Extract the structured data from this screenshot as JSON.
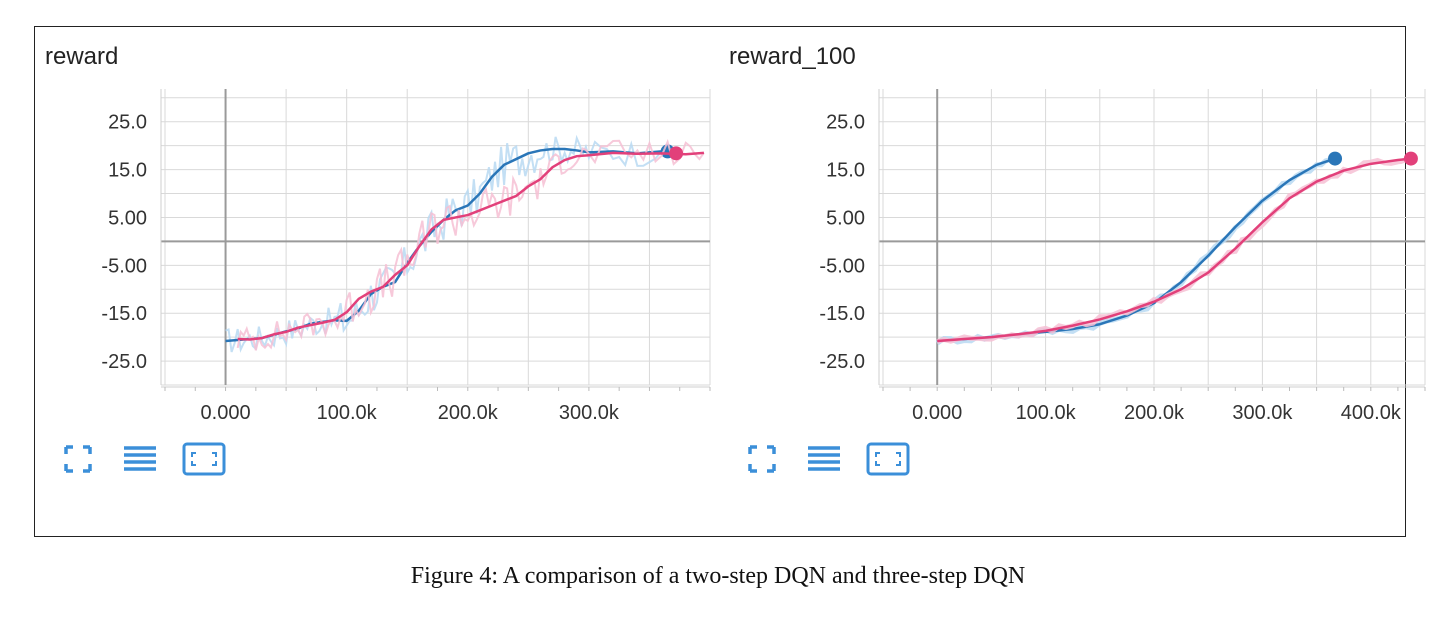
{
  "colors": {
    "blue": "#2a76b8",
    "blue_light": "#b9d9f2",
    "pink": "#e2407a",
    "pink_light": "#f6bfd4",
    "grid": "#d9d9d9",
    "axis": "#9a9a9a",
    "icon": "#3b8fd9"
  },
  "toolbar": {
    "icons": [
      "expand-icon",
      "list-icon",
      "fit-domain-icon"
    ]
  },
  "caption": "Figure 4: A comparison of a two-step DQN and three-step DQN",
  "chart_data": [
    {
      "type": "line",
      "title": "reward",
      "xlabel": "",
      "ylabel": "",
      "xlim": [
        -50000,
        400000
      ],
      "ylim": [
        -30,
        31
      ],
      "x_ticks": [
        0,
        100000,
        200000,
        300000
      ],
      "x_tick_labels": [
        "0.000",
        "100.0k",
        "200.0k",
        "300.0k"
      ],
      "y_ticks": [
        25,
        15,
        5,
        -5,
        -15,
        -25
      ],
      "y_tick_labels": [
        "25.0",
        "15.0",
        "5.00",
        "-5.00",
        "-15.0",
        "-25.0"
      ],
      "grid": true,
      "series": [
        {
          "color_key": "blue",
          "smoothed": [
            [
              0,
              -20.8
            ],
            [
              10000,
              -20.6
            ],
            [
              20000,
              -20.4
            ],
            [
              30000,
              -20.2
            ],
            [
              40000,
              -19.5
            ],
            [
              50000,
              -18.8
            ],
            [
              60000,
              -18.2
            ],
            [
              70000,
              -17.2
            ],
            [
              80000,
              -16.8
            ],
            [
              90000,
              -16.5
            ],
            [
              100000,
              -16.6
            ],
            [
              110000,
              -14.5
            ],
            [
              120000,
              -11.0
            ],
            [
              130000,
              -9.5
            ],
            [
              140000,
              -8.5
            ],
            [
              150000,
              -4.5
            ],
            [
              160000,
              -1.0
            ],
            [
              170000,
              2.0
            ],
            [
              180000,
              4.5
            ],
            [
              190000,
              6.5
            ],
            [
              200000,
              7.5
            ],
            [
              210000,
              10.0
            ],
            [
              220000,
              13.5
            ],
            [
              230000,
              16.0
            ],
            [
              240000,
              17.2
            ],
            [
              250000,
              18.4
            ],
            [
              260000,
              19.0
            ],
            [
              270000,
              19.3
            ],
            [
              280000,
              19.3
            ],
            [
              290000,
              19.0
            ],
            [
              300000,
              18.6
            ],
            [
              320000,
              18.8
            ],
            [
              340000,
              18.4
            ],
            [
              360000,
              18.8
            ]
          ],
          "end_marker": [
            365000,
            18.8
          ]
        },
        {
          "color_key": "pink",
          "smoothed": [
            [
              10000,
              -20.4
            ],
            [
              20000,
              -20.5
            ],
            [
              30000,
              -20.2
            ],
            [
              40000,
              -19.4
            ],
            [
              50000,
              -18.9
            ],
            [
              60000,
              -18.0
            ],
            [
              70000,
              -17.5
            ],
            [
              80000,
              -17.0
            ],
            [
              90000,
              -16.4
            ],
            [
              100000,
              -14.8
            ],
            [
              110000,
              -12.0
            ],
            [
              120000,
              -10.5
            ],
            [
              130000,
              -9.5
            ],
            [
              140000,
              -7.0
            ],
            [
              150000,
              -5.0
            ],
            [
              160000,
              -1.0
            ],
            [
              170000,
              2.5
            ],
            [
              180000,
              4.5
            ],
            [
              190000,
              5.0
            ],
            [
              200000,
              5.5
            ],
            [
              210000,
              6.5
            ],
            [
              220000,
              7.5
            ],
            [
              230000,
              8.5
            ],
            [
              240000,
              9.5
            ],
            [
              250000,
              11.5
            ],
            [
              260000,
              13.0
            ],
            [
              270000,
              15.5
            ],
            [
              280000,
              17.0
            ],
            [
              290000,
              17.8
            ],
            [
              300000,
              18.0
            ],
            [
              320000,
              18.5
            ],
            [
              340000,
              18.3
            ],
            [
              360000,
              18.4
            ],
            [
              380000,
              18.2
            ],
            [
              395000,
              18.5
            ]
          ],
          "end_marker": [
            372000,
            18.4
          ]
        }
      ]
    },
    {
      "type": "line",
      "title": "reward_100",
      "xlabel": "",
      "ylabel": "",
      "xlim": [
        -50000,
        450000
      ],
      "ylim": [
        -30,
        31
      ],
      "x_ticks": [
        0,
        100000,
        200000,
        300000,
        400000
      ],
      "x_tick_labels": [
        "0.000",
        "100.0k",
        "200.0k",
        "300.0k",
        "400.0k"
      ],
      "y_ticks": [
        25,
        15,
        5,
        -5,
        -15,
        -25
      ],
      "y_tick_labels": [
        "25.0",
        "15.0",
        "5.00",
        "-5.00",
        "-15.0",
        "-25.0"
      ],
      "grid": true,
      "series": [
        {
          "color_key": "blue",
          "smoothed": [
            [
              0,
              -20.8
            ],
            [
              25000,
              -20.4
            ],
            [
              50000,
              -20.0
            ],
            [
              75000,
              -19.4
            ],
            [
              100000,
              -18.9
            ],
            [
              125000,
              -18.3
            ],
            [
              150000,
              -17.3
            ],
            [
              175000,
              -15.5
            ],
            [
              200000,
              -12.9
            ],
            [
              225000,
              -8.5
            ],
            [
              250000,
              -3.0
            ],
            [
              275000,
              3.0
            ],
            [
              300000,
              8.5
            ],
            [
              325000,
              12.8
            ],
            [
              350000,
              16.0
            ],
            [
              367000,
              17.3
            ]
          ],
          "end_marker": [
            367000,
            17.3
          ]
        },
        {
          "color_key": "pink",
          "smoothed": [
            [
              0,
              -20.8
            ],
            [
              25000,
              -20.4
            ],
            [
              50000,
              -20.0
            ],
            [
              75000,
              -19.4
            ],
            [
              100000,
              -18.7
            ],
            [
              125000,
              -17.6
            ],
            [
              150000,
              -16.3
            ],
            [
              175000,
              -14.6
            ],
            [
              200000,
              -12.6
            ],
            [
              225000,
              -10.0
            ],
            [
              250000,
              -6.5
            ],
            [
              275000,
              -1.5
            ],
            [
              300000,
              4.0
            ],
            [
              325000,
              9.0
            ],
            [
              350000,
              12.5
            ],
            [
              375000,
              14.8
            ],
            [
              400000,
              16.2
            ],
            [
              425000,
              17.0
            ],
            [
              437000,
              17.3
            ]
          ],
          "end_marker": [
            437000,
            17.3
          ]
        }
      ]
    }
  ]
}
